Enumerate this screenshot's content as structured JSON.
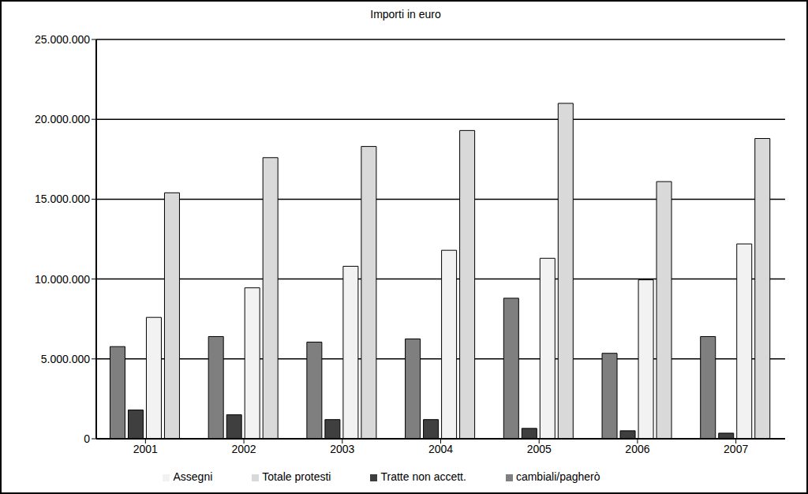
{
  "chart_data": {
    "type": "bar",
    "title": "Importi in euro",
    "categories": [
      "2001",
      "2002",
      "2003",
      "2004",
      "2005",
      "2006",
      "2007"
    ],
    "series": [
      {
        "name": "cambiali/pagherò",
        "color": "#7f7f7f",
        "values": [
          5770000,
          6400000,
          6050000,
          6250000,
          8800000,
          5350000,
          6400000
        ]
      },
      {
        "name": "Tratte non accett.",
        "color": "#3f3f3f",
        "values": [
          1800000,
          1500000,
          1200000,
          1200000,
          650000,
          500000,
          350000
        ]
      },
      {
        "name": "Assegni",
        "color": "#f2f2f2",
        "values": [
          7600000,
          9450000,
          10800000,
          11800000,
          11300000,
          9950000,
          12200000
        ]
      },
      {
        "name": "Totale protesti",
        "color": "#d9d9d9",
        "values": [
          15400000,
          17600000,
          18300000,
          19300000,
          21000000,
          16100000,
          18800000
        ]
      }
    ],
    "ylim": [
      0,
      25000000
    ],
    "yticks": [
      0,
      {
        "value": 5000000,
        "label": "5.000.000"
      },
      {
        "value": 10000000,
        "label": "10.000.000"
      },
      {
        "value": 15000000,
        "label": "15.000.000"
      },
      {
        "value": 20000000,
        "label": "20.000.000"
      },
      {
        "value": 25000000,
        "label": "25.000.000"
      }
    ],
    "grid": true,
    "legend": "bottom"
  }
}
